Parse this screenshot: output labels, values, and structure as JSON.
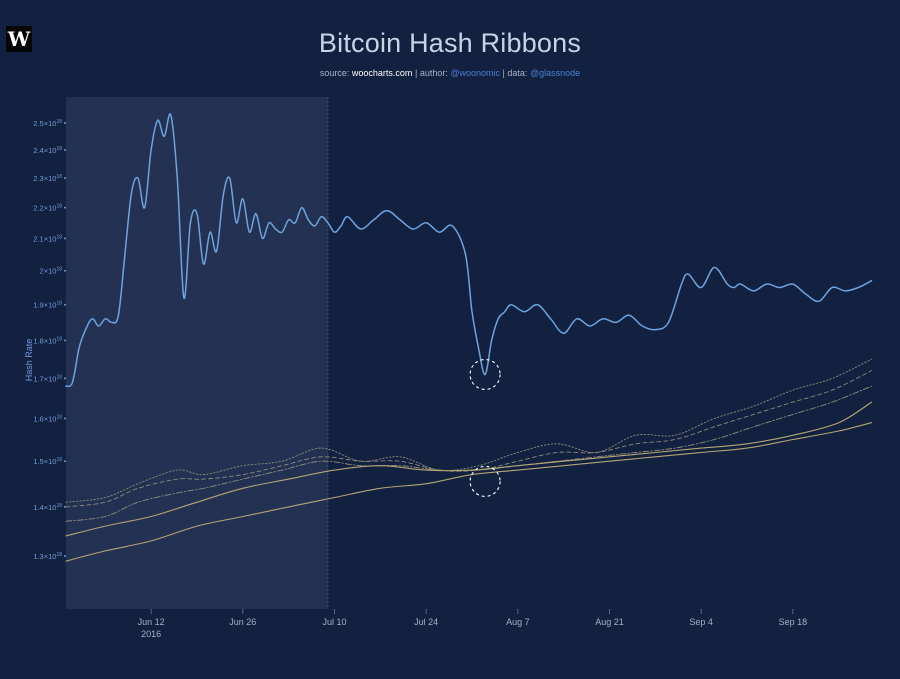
{
  "header": {
    "logo_text": "W",
    "title": "Bitcoin Hash Ribbons",
    "source_label": "source:",
    "source_value": "woocharts.com",
    "author_label": "author:",
    "author_value": "@woonomic",
    "data_label": "data:",
    "data_value": "@glassnode",
    "separator": "|"
  },
  "colors": {
    "background": "#132141",
    "shade": "#233253",
    "hash_rate": "#6ea3dc",
    "ribbon_light": "#8b8b78",
    "ribbon_solid": "#b4a573",
    "tick": "#6f9ad8",
    "xtick": "#a4b0c4"
  },
  "chart_data": {
    "type": "line",
    "title": "Bitcoin Hash Ribbons",
    "ylabel": "Hash Rate",
    "y_scale": "log",
    "ylim": [
      1.2e+18,
      2.6e+18
    ],
    "xlim": [
      "2016-05-30",
      "2016-10-01"
    ],
    "y_ticks": [
      {
        "value": 1.3e+18,
        "mantissa": "1.3×10",
        "exp": "18"
      },
      {
        "value": 1.4e+18,
        "mantissa": "1.4×10",
        "exp": "18"
      },
      {
        "value": 1.5e+18,
        "mantissa": "1.5×10",
        "exp": "18"
      },
      {
        "value": 1.6e+18,
        "mantissa": "1.6×10",
        "exp": "18"
      },
      {
        "value": 1.7e+18,
        "mantissa": "1.7×10",
        "exp": "18"
      },
      {
        "value": 1.8e+18,
        "mantissa": "1.8×10",
        "exp": "18"
      },
      {
        "value": 1.9e+18,
        "mantissa": "1.9×10",
        "exp": "18"
      },
      {
        "value": 2e+18,
        "mantissa": "2×10",
        "exp": "18"
      },
      {
        "value": 2.1e+18,
        "mantissa": "2.1×10",
        "exp": "18"
      },
      {
        "value": 2.2e+18,
        "mantissa": "2.2×10",
        "exp": "18"
      },
      {
        "value": 2.3e+18,
        "mantissa": "2.3×10",
        "exp": "18"
      },
      {
        "value": 2.4e+18,
        "mantissa": "2.4×10",
        "exp": "18"
      },
      {
        "value": 2.5e+18,
        "mantissa": "2.5×10",
        "exp": "18"
      }
    ],
    "x_ticks": [
      {
        "date": "2016-06-12",
        "label": "Jun 12",
        "sublabel": "2016"
      },
      {
        "date": "2016-06-26",
        "label": "Jun 26"
      },
      {
        "date": "2016-07-10",
        "label": "Jul 10"
      },
      {
        "date": "2016-07-24",
        "label": "Jul 24"
      },
      {
        "date": "2016-08-07",
        "label": "Aug 7"
      },
      {
        "date": "2016-08-21",
        "label": "Aug 21"
      },
      {
        "date": "2016-09-04",
        "label": "Sep 4"
      },
      {
        "date": "2016-09-18",
        "label": "Sep 18"
      }
    ],
    "shaded_range": [
      "2016-05-30",
      "2016-07-09"
    ],
    "markers": [
      {
        "date": "2016-08-02",
        "value": 1.71e+18
      },
      {
        "date": "2016-08-02",
        "value": 1.455e+18
      }
    ],
    "series": [
      {
        "style": "hashrate",
        "x": [
          "2016-05-30",
          "2016-05-31",
          "2016-06-01",
          "2016-06-02",
          "2016-06-03",
          "2016-06-04",
          "2016-06-05",
          "2016-06-06",
          "2016-06-07",
          "2016-06-08",
          "2016-06-09",
          "2016-06-10",
          "2016-06-11",
          "2016-06-12",
          "2016-06-13",
          "2016-06-14",
          "2016-06-15",
          "2016-06-16",
          "2016-06-17",
          "2016-06-18",
          "2016-06-19",
          "2016-06-20",
          "2016-06-21",
          "2016-06-22",
          "2016-06-23",
          "2016-06-24",
          "2016-06-25",
          "2016-06-26",
          "2016-06-27",
          "2016-06-28",
          "2016-06-29",
          "2016-06-30",
          "2016-07-01",
          "2016-07-02",
          "2016-07-03",
          "2016-07-04",
          "2016-07-05",
          "2016-07-06",
          "2016-07-07",
          "2016-07-08",
          "2016-07-09",
          "2016-07-10",
          "2016-07-11",
          "2016-07-12",
          "2016-07-14",
          "2016-07-16",
          "2016-07-18",
          "2016-07-20",
          "2016-07-22",
          "2016-07-24",
          "2016-07-26",
          "2016-07-28",
          "2016-07-30",
          "2016-07-31",
          "2016-08-01",
          "2016-08-02",
          "2016-08-03",
          "2016-08-04",
          "2016-08-05",
          "2016-08-06",
          "2016-08-08",
          "2016-08-10",
          "2016-08-12",
          "2016-08-14",
          "2016-08-16",
          "2016-08-18",
          "2016-08-20",
          "2016-08-22",
          "2016-08-24",
          "2016-08-26",
          "2016-08-28",
          "2016-08-30",
          "2016-09-01",
          "2016-09-02",
          "2016-09-04",
          "2016-09-06",
          "2016-09-08",
          "2016-09-09",
          "2016-09-10",
          "2016-09-12",
          "2016-09-14",
          "2016-09-16",
          "2016-09-18",
          "2016-09-20",
          "2016-09-22",
          "2016-09-24",
          "2016-09-26",
          "2016-09-28",
          "2016-09-30"
        ],
        "y": [
          1.68e+18,
          1.69e+18,
          1.78e+18,
          1.83e+18,
          1.86e+18,
          1.84e+18,
          1.86e+18,
          1.85e+18,
          1.87e+18,
          2.05e+18,
          2.25e+18,
          2.3e+18,
          2.2e+18,
          2.4e+18,
          2.51e+18,
          2.45e+18,
          2.53e+18,
          2.3e+18,
          1.92e+18,
          2.15e+18,
          2.18e+18,
          2.02e+18,
          2.12e+18,
          2.06e+18,
          2.24e+18,
          2.3e+18,
          2.15e+18,
          2.23e+18,
          2.12e+18,
          2.18e+18,
          2.1e+18,
          2.15e+18,
          2.13e+18,
          2.12e+18,
          2.16e+18,
          2.15e+18,
          2.2e+18,
          2.16e+18,
          2.14e+18,
          2.17e+18,
          2.15e+18,
          2.12e+18,
          2.14e+18,
          2.17e+18,
          2.13e+18,
          2.16e+18,
          2.19e+18,
          2.16e+18,
          2.13e+18,
          2.15e+18,
          2.12e+18,
          2.14e+18,
          2.05e+18,
          1.88e+18,
          1.78e+18,
          1.71e+18,
          1.8e+18,
          1.86e+18,
          1.88e+18,
          1.9e+18,
          1.88e+18,
          1.9e+18,
          1.86e+18,
          1.82e+18,
          1.86e+18,
          1.84e+18,
          1.86e+18,
          1.85e+18,
          1.87e+18,
          1.84e+18,
          1.83e+18,
          1.85e+18,
          1.96e+18,
          1.99e+18,
          1.95e+18,
          2.01e+18,
          1.96e+18,
          1.95e+18,
          1.96e+18,
          1.94e+18,
          1.96e+18,
          1.95e+18,
          1.96e+18,
          1.93e+18,
          1.91e+18,
          1.95e+18,
          1.94e+18,
          1.95e+18,
          1.97e+18
        ]
      },
      {
        "style": "light-dotted",
        "x": [
          "2016-05-30",
          "2016-06-05",
          "2016-06-10",
          "2016-06-16",
          "2016-06-20",
          "2016-06-26",
          "2016-07-02",
          "2016-07-08",
          "2016-07-14",
          "2016-07-20",
          "2016-07-26",
          "2016-08-01",
          "2016-08-07",
          "2016-08-13",
          "2016-08-19",
          "2016-08-25",
          "2016-08-31",
          "2016-09-06",
          "2016-09-12",
          "2016-09-18",
          "2016-09-24",
          "2016-09-30"
        ],
        "y": [
          1.41e+18,
          1.42e+18,
          1.45e+18,
          1.48e+18,
          1.47e+18,
          1.49e+18,
          1.5e+18,
          1.53e+18,
          1.5e+18,
          1.51e+18,
          1.48e+18,
          1.49e+18,
          1.52e+18,
          1.54e+18,
          1.52e+18,
          1.56e+18,
          1.56e+18,
          1.6e+18,
          1.63e+18,
          1.67e+18,
          1.7e+18,
          1.75e+18
        ]
      },
      {
        "style": "light-dashed",
        "x": [
          "2016-05-30",
          "2016-06-05",
          "2016-06-10",
          "2016-06-16",
          "2016-06-20",
          "2016-06-26",
          "2016-07-02",
          "2016-07-08",
          "2016-07-14",
          "2016-07-20",
          "2016-07-26",
          "2016-08-01",
          "2016-08-07",
          "2016-08-13",
          "2016-08-19",
          "2016-08-25",
          "2016-08-31",
          "2016-09-06",
          "2016-09-12",
          "2016-09-18",
          "2016-09-24",
          "2016-09-30"
        ],
        "y": [
          1.4e+18,
          1.41e+18,
          1.44e+18,
          1.46e+18,
          1.46e+18,
          1.47e+18,
          1.49e+18,
          1.51e+18,
          1.5e+18,
          1.5e+18,
          1.48e+18,
          1.48e+18,
          1.5e+18,
          1.52e+18,
          1.52e+18,
          1.54e+18,
          1.55e+18,
          1.58e+18,
          1.61e+18,
          1.64e+18,
          1.67e+18,
          1.72e+18
        ]
      },
      {
        "style": "light-dashdot",
        "x": [
          "2016-05-30",
          "2016-06-05",
          "2016-06-10",
          "2016-06-16",
          "2016-06-20",
          "2016-06-26",
          "2016-07-02",
          "2016-07-08",
          "2016-07-14",
          "2016-07-20",
          "2016-07-26",
          "2016-08-01",
          "2016-08-07",
          "2016-08-13",
          "2016-08-19",
          "2016-08-25",
          "2016-08-31",
          "2016-09-06",
          "2016-09-12",
          "2016-09-18",
          "2016-09-24",
          "2016-09-30"
        ],
        "y": [
          1.37e+18,
          1.38e+18,
          1.41e+18,
          1.43e+18,
          1.44e+18,
          1.46e+18,
          1.48e+18,
          1.5e+18,
          1.49e+18,
          1.49e+18,
          1.48e+18,
          1.48e+18,
          1.49e+18,
          1.5e+18,
          1.51e+18,
          1.52e+18,
          1.53e+18,
          1.55e+18,
          1.58e+18,
          1.61e+18,
          1.64e+18,
          1.68e+18
        ]
      },
      {
        "style": "solid-upper",
        "x": [
          "2016-05-30",
          "2016-06-05",
          "2016-06-12",
          "2016-06-19",
          "2016-06-26",
          "2016-07-03",
          "2016-07-10",
          "2016-07-17",
          "2016-07-24",
          "2016-07-31",
          "2016-08-07",
          "2016-08-14",
          "2016-08-21",
          "2016-08-28",
          "2016-09-04",
          "2016-09-11",
          "2016-09-18",
          "2016-09-25",
          "2016-09-30"
        ],
        "y": [
          1.34e+18,
          1.36e+18,
          1.38e+18,
          1.41e+18,
          1.44e+18,
          1.46e+18,
          1.48e+18,
          1.49e+18,
          1.48e+18,
          1.48e+18,
          1.49e+18,
          1.5e+18,
          1.51e+18,
          1.52e+18,
          1.53e+18,
          1.54e+18,
          1.56e+18,
          1.59e+18,
          1.64e+18
        ]
      },
      {
        "style": "solid-lower",
        "x": [
          "2016-05-30",
          "2016-06-05",
          "2016-06-12",
          "2016-06-19",
          "2016-06-26",
          "2016-07-03",
          "2016-07-10",
          "2016-07-17",
          "2016-07-24",
          "2016-07-31",
          "2016-08-07",
          "2016-08-14",
          "2016-08-21",
          "2016-08-28",
          "2016-09-04",
          "2016-09-11",
          "2016-09-18",
          "2016-09-25",
          "2016-09-30"
        ],
        "y": [
          1.29e+18,
          1.31e+18,
          1.33e+18,
          1.36e+18,
          1.38e+18,
          1.4e+18,
          1.42e+18,
          1.44e+18,
          1.45e+18,
          1.47e+18,
          1.48e+18,
          1.49e+18,
          1.5e+18,
          1.51e+18,
          1.52e+18,
          1.53e+18,
          1.55e+18,
          1.57e+18,
          1.59e+18
        ]
      }
    ]
  }
}
